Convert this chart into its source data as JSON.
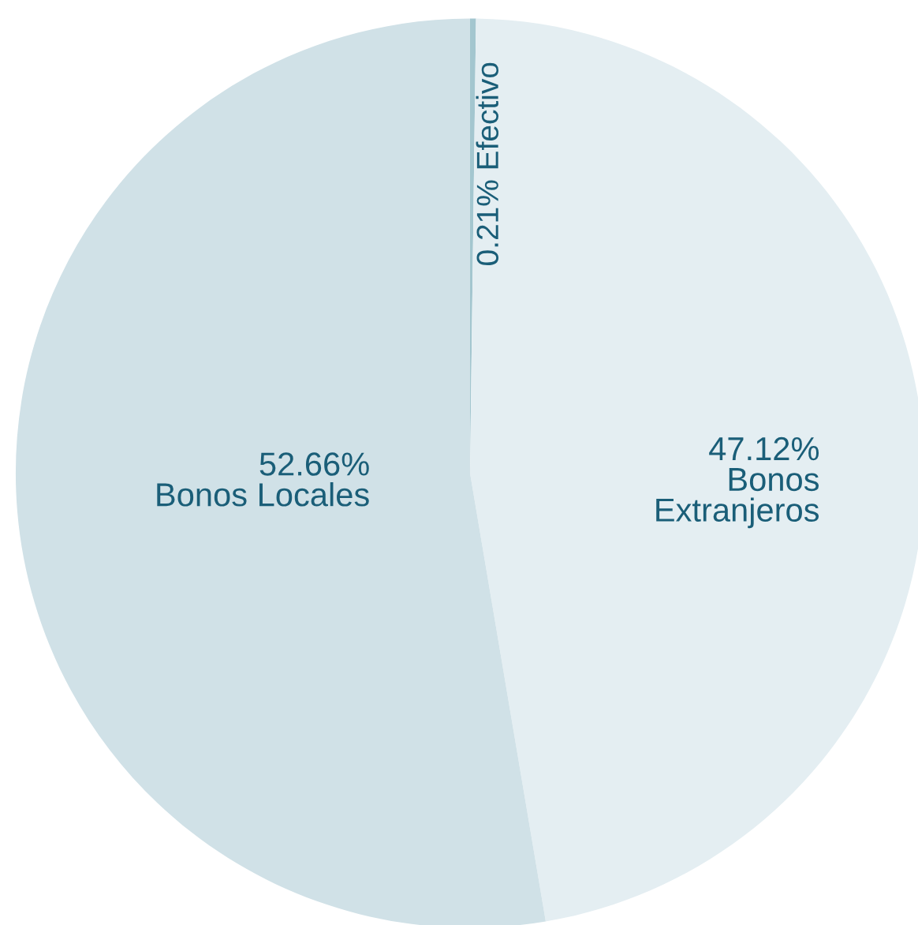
{
  "chart_data": {
    "type": "pie",
    "categories": [
      "Efectivo",
      "Bonos\nExtranjeros",
      "Bonos Locales"
    ],
    "values": [
      0.21,
      47.12,
      52.66
    ],
    "value_labels": [
      "0.21%",
      "47.12%",
      "52.66%"
    ],
    "colors": [
      "#a3c6cf",
      "#e4eef2",
      "#d0e1e7"
    ]
  }
}
